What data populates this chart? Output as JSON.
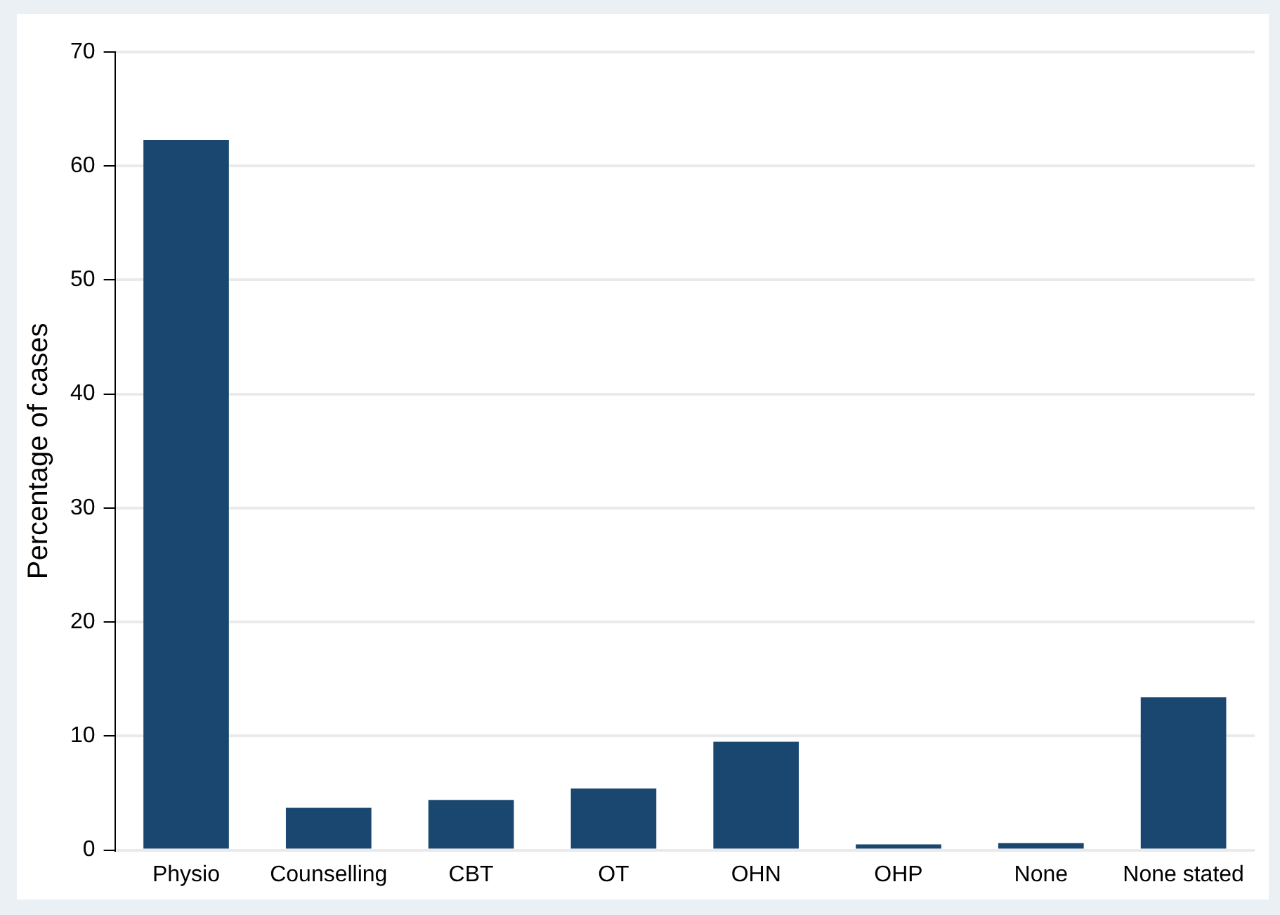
{
  "chart_data": {
    "type": "bar",
    "ylabel": "Percentage of cases",
    "categories": [
      "Physio",
      "Counselling",
      "CBT",
      "OT",
      "OHN",
      "OHP",
      "None",
      "None stated"
    ],
    "values": [
      62.3,
      3.7,
      4.4,
      5.4,
      9.5,
      0.5,
      0.6,
      13.4
    ],
    "color": "#1a476f",
    "ylim": [
      0,
      70
    ],
    "yticks": [
      0,
      10,
      20,
      30,
      40,
      50,
      60,
      70
    ],
    "grid": "y"
  }
}
